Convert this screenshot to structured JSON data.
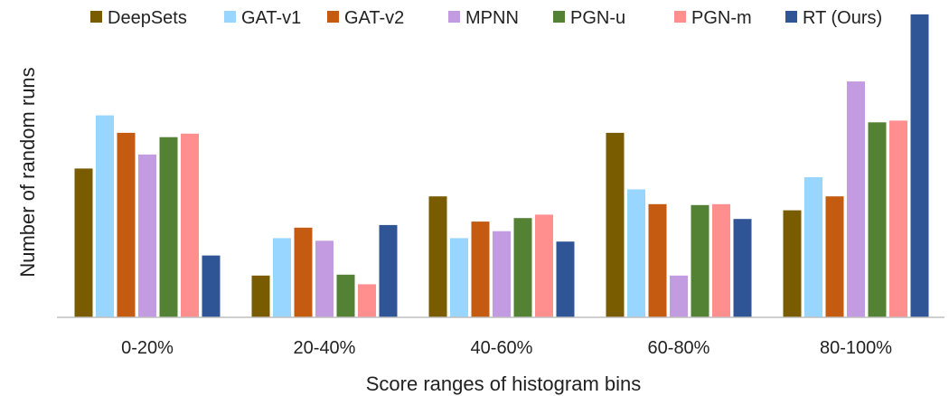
{
  "chart_data": {
    "type": "bar",
    "title": "",
    "xlabel": "Score ranges of histogram bins",
    "ylabel": "Number of random runs",
    "categories": [
      "0-20%",
      "20-40%",
      "40-60%",
      "60-80%",
      "80-100%"
    ],
    "ylim": [
      0,
      35
    ],
    "grid": false,
    "legend_placement": "top",
    "series": [
      {
        "name": "DeepSets",
        "color": "#7a5c00",
        "values": [
          17.1,
          4.8,
          13.9,
          21.2,
          12.3
        ]
      },
      {
        "name": "GAT-v1",
        "color": "#99d6ff",
        "values": [
          23.2,
          9.1,
          9.1,
          14.7,
          16.1
        ]
      },
      {
        "name": "GAT-v2",
        "color": "#c55a11",
        "values": [
          21.2,
          10.3,
          11.0,
          13.0,
          13.9
        ]
      },
      {
        "name": "MPNN",
        "color": "#c39be0",
        "values": [
          18.7,
          8.8,
          9.9,
          4.8,
          27.1
        ]
      },
      {
        "name": "PGN-u",
        "color": "#548235",
        "values": [
          20.7,
          4.9,
          11.4,
          12.9,
          22.4
        ]
      },
      {
        "name": "PGN-m",
        "color": "#ff8f8f",
        "values": [
          21.1,
          3.8,
          11.8,
          13.0,
          22.6
        ]
      },
      {
        "name": "RT (Ours)",
        "color": "#2f5597",
        "values": [
          7.1,
          10.6,
          8.7,
          11.3,
          34.8
        ]
      }
    ]
  }
}
